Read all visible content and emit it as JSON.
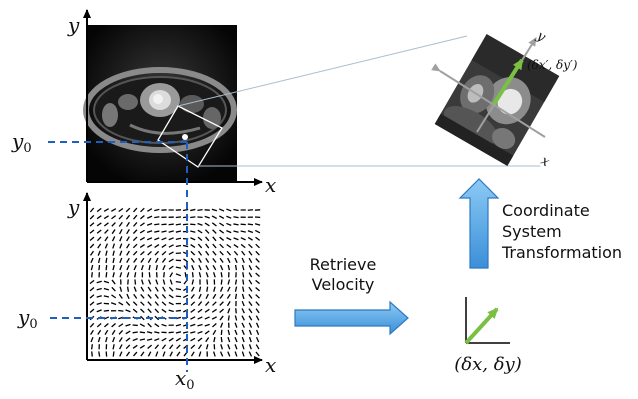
{
  "top_axes": {
    "y_label": "y",
    "x_label": "x",
    "y0_label": "y",
    "y0_sub": "0"
  },
  "bottom_axes": {
    "y_label": "y",
    "x_label": "x",
    "y0_label": "y",
    "y0_sub": "0",
    "x0_label": "x",
    "x0_sub": "0"
  },
  "retrieve": {
    "line1": "Retrieve",
    "line2": "Velocity"
  },
  "transform": {
    "line1": "Coordinate",
    "line2": "System",
    "line3": "Transformation"
  },
  "rotated_axes": {
    "x_label": "x",
    "y_label": "y",
    "delta_label": "(δx′, δy′)"
  },
  "small_vector": {
    "delta_label": "(δx, δy)"
  },
  "colors": {
    "guide": "#1f5fbf",
    "vector": "#7ac143",
    "arrow_fill": "#5aa7e6",
    "arrow_stroke": "#2f78c4",
    "axis_gray": "#a0a0a0"
  }
}
